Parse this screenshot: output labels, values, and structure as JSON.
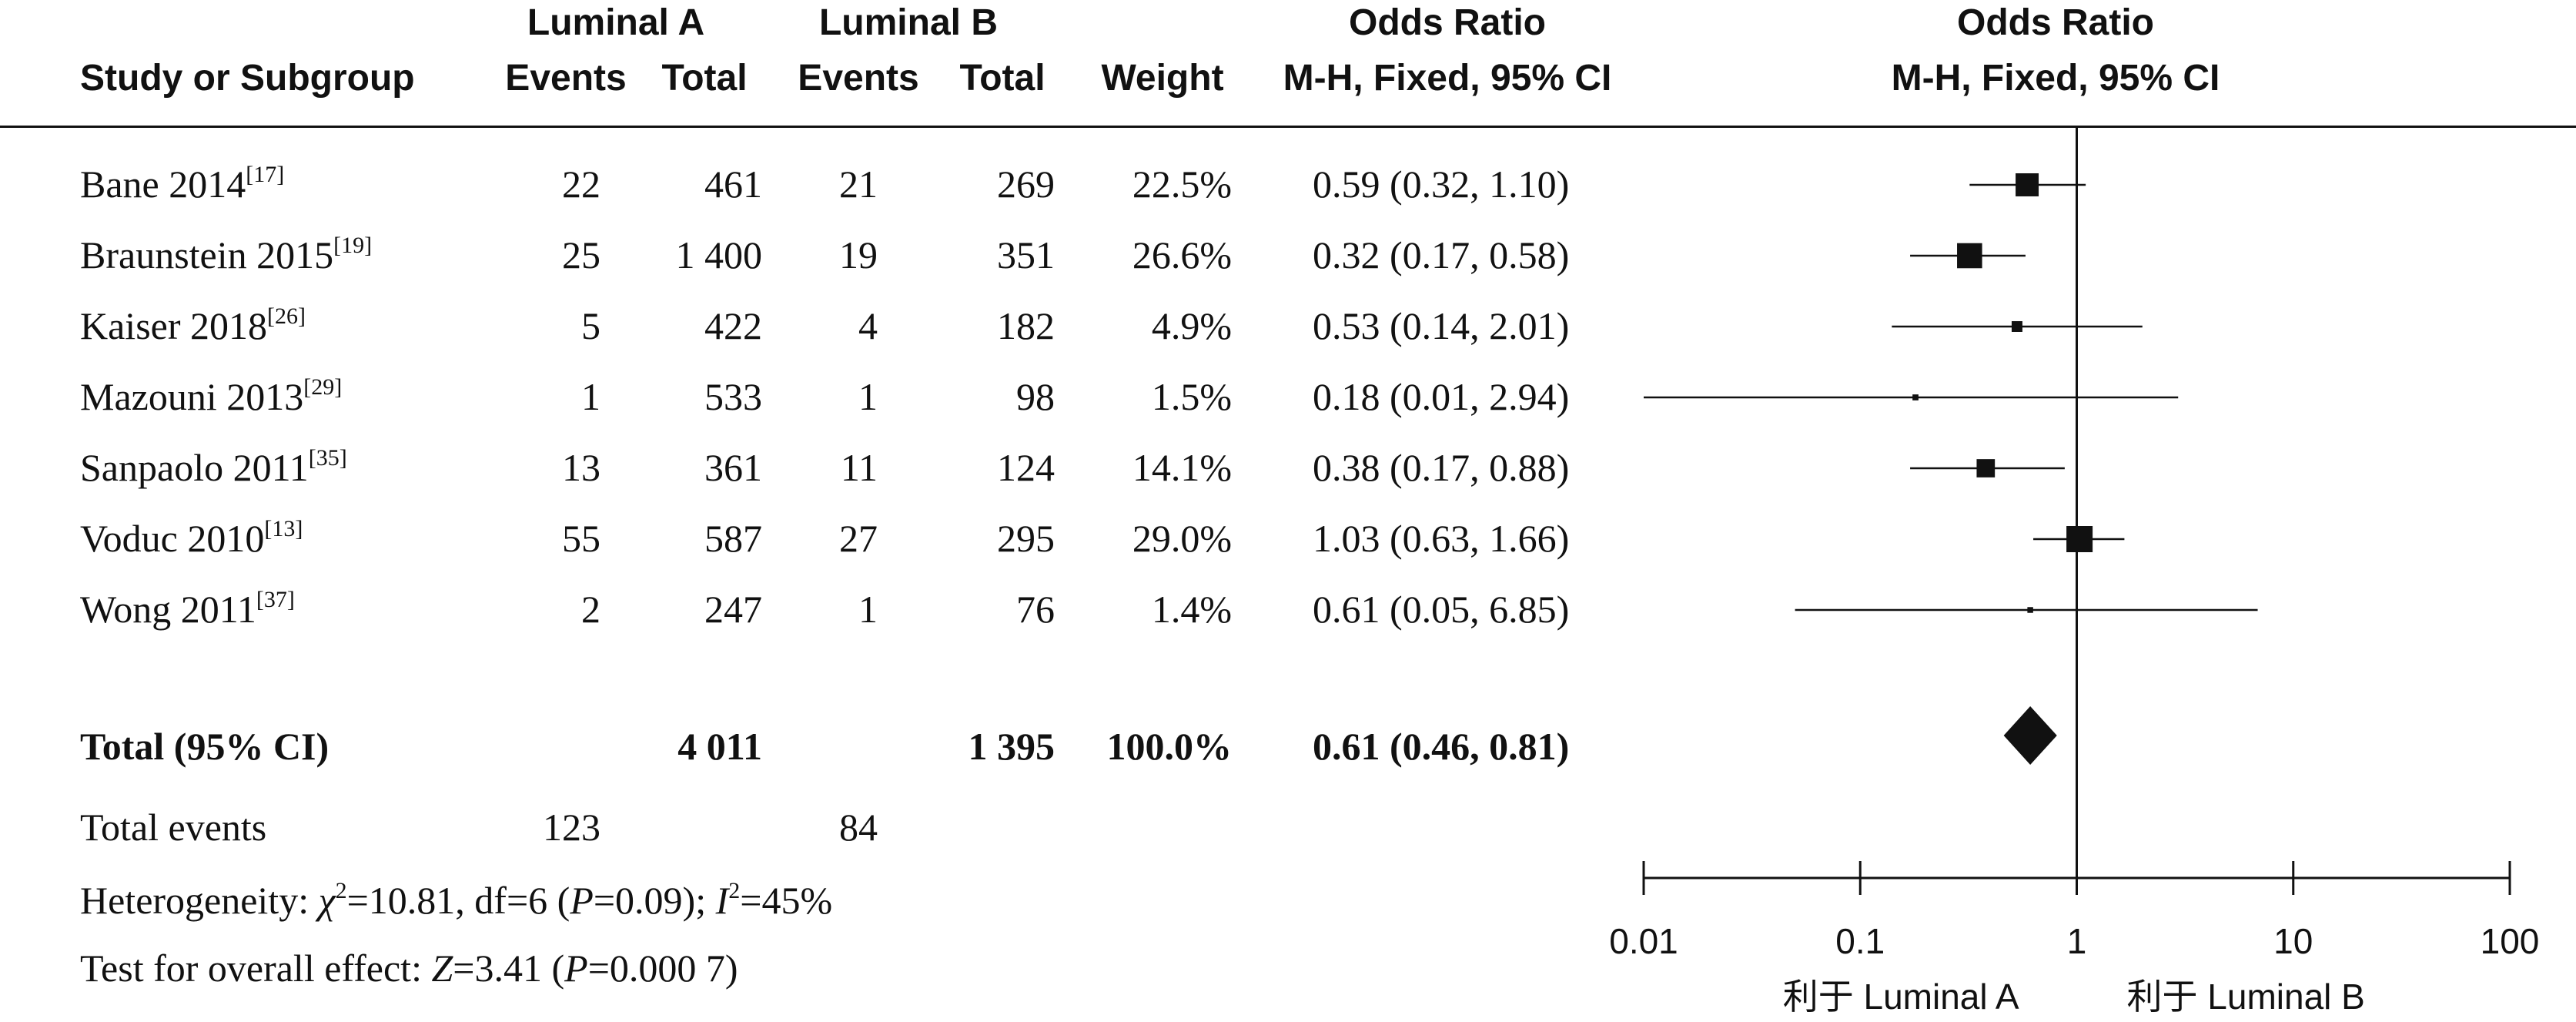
{
  "header": {
    "group1": "Luminal A",
    "group2": "Luminal B",
    "study_col": "Study or Subgroup",
    "events": "Events",
    "total": "Total",
    "weight": "Weight",
    "or_title": "Odds Ratio",
    "or_method": "M-H, Fixed, 95% CI",
    "plot_title": "Odds Ratio",
    "plot_method": "M-H, Fixed, 95% CI"
  },
  "studies": [
    {
      "name": "Bane 2014",
      "ref": "[17]",
      "a_events": "22",
      "a_total": "461",
      "b_events": "21",
      "b_total": "269",
      "weight": "22.5%",
      "ci_text": "0.59 (0.32, 1.10)"
    },
    {
      "name": "Braunstein 2015",
      "ref": "[19]",
      "a_events": "25",
      "a_total": "1 400",
      "b_events": "19",
      "b_total": "351",
      "weight": "26.6%",
      "ci_text": "0.32 (0.17, 0.58)"
    },
    {
      "name": "Kaiser 2018",
      "ref": "[26]",
      "a_events": "5",
      "a_total": "422",
      "b_events": "4",
      "b_total": "182",
      "weight": "4.9%",
      "ci_text": "0.53 (0.14, 2.01)"
    },
    {
      "name": "Mazouni 2013",
      "ref": "[29]",
      "a_events": "1",
      "a_total": "533",
      "b_events": "1",
      "b_total": "98",
      "weight": "1.5%",
      "ci_text": "0.18 (0.01, 2.94)"
    },
    {
      "name": "Sanpaolo 2011",
      "ref": "[35]",
      "a_events": "13",
      "a_total": "361",
      "b_events": "11",
      "b_total": "124",
      "weight": "14.1%",
      "ci_text": "0.38 (0.17, 0.88)"
    },
    {
      "name": "Voduc 2010",
      "ref": "[13]",
      "a_events": "55",
      "a_total": "587",
      "b_events": "27",
      "b_total": "295",
      "weight": "29.0%",
      "ci_text": "1.03 (0.63, 1.66)"
    },
    {
      "name": "Wong 2011",
      "ref": "[37]",
      "a_events": "2",
      "a_total": "247",
      "b_events": "1",
      "b_total": "76",
      "weight": "1.4%",
      "ci_text": "0.61 (0.05, 6.85)"
    }
  ],
  "total": {
    "label": "Total (95% CI)",
    "a_total": "4 011",
    "b_total": "1 395",
    "weight": "100.0%",
    "ci_text": "0.61 (0.46, 0.81)"
  },
  "total_events": {
    "label": "Total events",
    "a": "123",
    "b": "84"
  },
  "heterogeneity": {
    "prefix": "Heterogeneity: ",
    "chi": "χ",
    "chi_sup": "2",
    "chi_val": "=10.81, df=6 (",
    "p": "P",
    "p_val": "=0.09); ",
    "i": "I",
    "i_sup": "2",
    "i_val": "=45%"
  },
  "overall": {
    "prefix": "Test for overall effect: ",
    "z": "Z",
    "z_val": "=3.41 (",
    "p": "P",
    "p_val": "=0.000 7)"
  },
  "chart_data": {
    "type": "forest",
    "x_scale": "log",
    "xlim": [
      0.01,
      100
    ],
    "x_ticks": [
      0.01,
      0.1,
      1,
      10,
      100
    ],
    "x_tick_labels": [
      "0.01",
      "0.1",
      "1",
      "10",
      "100"
    ],
    "null_line": 1,
    "favours_left": "利于 Luminal A",
    "favours_right": "利于 Luminal B",
    "series": [
      {
        "name": "Bane 2014",
        "or": 0.59,
        "lower": 0.32,
        "upper": 1.1,
        "weight": 22.5
      },
      {
        "name": "Braunstein 2015",
        "or": 0.32,
        "lower": 0.17,
        "upper": 0.58,
        "weight": 26.6
      },
      {
        "name": "Kaiser 2018",
        "or": 0.53,
        "lower": 0.14,
        "upper": 2.01,
        "weight": 4.9
      },
      {
        "name": "Mazouni 2013",
        "or": 0.18,
        "lower": 0.01,
        "upper": 2.94,
        "weight": 1.5
      },
      {
        "name": "Sanpaolo 2011",
        "or": 0.38,
        "lower": 0.17,
        "upper": 0.88,
        "weight": 14.1
      },
      {
        "name": "Voduc 2010",
        "or": 1.03,
        "lower": 0.63,
        "upper": 1.66,
        "weight": 29.0
      },
      {
        "name": "Wong 2011",
        "or": 0.61,
        "lower": 0.05,
        "upper": 6.85,
        "weight": 1.4
      }
    ],
    "pooled": {
      "name": "Total (95% CI)",
      "or": 0.61,
      "lower": 0.46,
      "upper": 0.81
    }
  }
}
